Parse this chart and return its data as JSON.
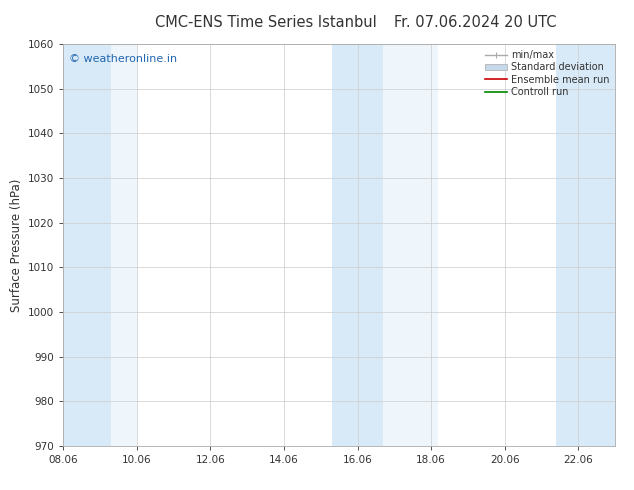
{
  "title": "CMC-ENS Time Series Istanbul",
  "title2": "Fr. 07.06.2024 20 UTC",
  "ylabel": "Surface Pressure (hPa)",
  "xlabel": "",
  "ylim": [
    970,
    1060
  ],
  "yticks": [
    970,
    980,
    990,
    1000,
    1010,
    1020,
    1030,
    1040,
    1050,
    1060
  ],
  "xlim_start": 0.0,
  "xlim_end": 15.0,
  "xtick_labels": [
    "08.06",
    "10.06",
    "12.06",
    "14.06",
    "16.06",
    "18.06",
    "20.06",
    "22.06"
  ],
  "xtick_positions": [
    0.0,
    2.0,
    4.0,
    6.0,
    8.0,
    10.0,
    12.0,
    14.0
  ],
  "shaded_bands": [
    {
      "x_start": 0.0,
      "x_end": 1.3,
      "color": "#d8eaf7"
    },
    {
      "x_start": 1.3,
      "x_end": 2.0,
      "color": "#eef5fb"
    },
    {
      "x_start": 7.3,
      "x_end": 8.7,
      "color": "#d8eaf7"
    },
    {
      "x_start": 8.7,
      "x_end": 10.2,
      "color": "#eef5fb"
    },
    {
      "x_start": 13.4,
      "x_end": 15.0,
      "color": "#d8eaf7"
    }
  ],
  "watermark_text": "© weatheronline.in",
  "watermark_color": "#2166b0",
  "legend_items": [
    {
      "label": "min/max",
      "color": "#aaaaaa"
    },
    {
      "label": "Standard deviation",
      "color": "#c5d9ea"
    },
    {
      "label": "Ensemble mean run",
      "color": "#cc0000"
    },
    {
      "label": "Controll run",
      "color": "#008800"
    }
  ],
  "background_color": "#ffffff",
  "plot_bg_color": "#ffffff",
  "title_color": "#333333",
  "axis_label_color": "#333333",
  "tick_color": "#333333",
  "grid_color": "#cccccc",
  "title_fontsize": 10.5,
  "ylabel_fontsize": 8.5,
  "tick_fontsize": 7.5,
  "legend_fontsize": 7.0,
  "watermark_fontsize": 8.0
}
